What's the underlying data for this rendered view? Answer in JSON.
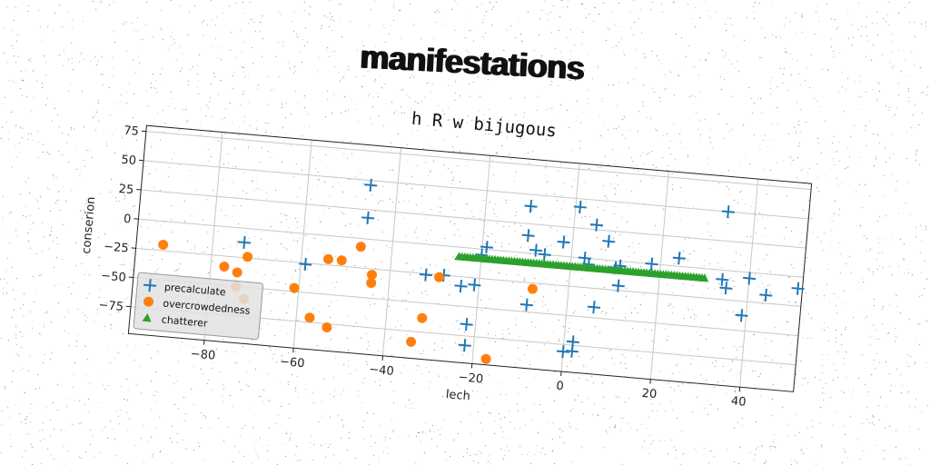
{
  "title": "manifestations",
  "chart_data": {
    "type": "scatter",
    "subtitle": "h R w bijugous",
    "xlabel": "lech",
    "ylabel": "conserion",
    "xlim": [
      -97,
      52
    ],
    "ylim": [
      -98,
      80
    ],
    "xticks": [
      -80,
      -60,
      -40,
      -20,
      0,
      20,
      40
    ],
    "yticks": [
      -75,
      -50,
      -25,
      0,
      25,
      50,
      75
    ],
    "grid": true,
    "legend_position": "lower left",
    "series": [
      {
        "name": "precalculate",
        "marker": "plus",
        "color": "#1f77b4",
        "points": [
          [
            -73,
            -12
          ],
          [
            -59,
            -26
          ],
          [
            -46,
            46
          ],
          [
            -46,
            18
          ],
          [
            -32,
            -26
          ],
          [
            -28,
            -25
          ],
          [
            -24,
            -33
          ],
          [
            -22,
            -65
          ],
          [
            -21,
            -31
          ],
          [
            -20,
            -5
          ],
          [
            -19,
            2
          ],
          [
            -22,
            -83
          ],
          [
            -10,
            40
          ],
          [
            -10,
            15
          ],
          [
            -9,
            -44
          ],
          [
            -8,
            3
          ],
          [
            -6,
            0
          ],
          [
            -2,
            12
          ],
          [
            1,
            43
          ],
          [
            2,
            -72
          ],
          [
            3,
            0
          ],
          [
            4,
            -5
          ],
          [
            5,
            29
          ],
          [
            6,
            -41
          ],
          [
            8,
            16
          ],
          [
            10,
            -6
          ],
          [
            11,
            -4
          ],
          [
            11,
            -21
          ],
          [
            18,
            0
          ],
          [
            24,
            7
          ],
          [
            34,
            50
          ],
          [
            35,
            -15
          ],
          [
            34,
            -8
          ],
          [
            39,
            -37
          ],
          [
            40,
            -5
          ],
          [
            44,
            -18
          ],
          [
            51,
            -10
          ],
          [
            2,
            -80
          ],
          [
            0,
            -81
          ]
        ]
      },
      {
        "name": "overcrowdedness",
        "marker": "circle",
        "color": "#ff7f0e",
        "points": [
          [
            -91,
            -20
          ],
          [
            -77,
            -34
          ],
          [
            -74,
            -38
          ],
          [
            -74,
            -50
          ],
          [
            -72,
            -24
          ],
          [
            -72,
            -60
          ],
          [
            -61,
            -47
          ],
          [
            -57,
            -71
          ],
          [
            -54,
            -20
          ],
          [
            -53,
            -78
          ],
          [
            -51,
            -20
          ],
          [
            -47,
            -7
          ],
          [
            -44,
            -37
          ],
          [
            -44,
            -30
          ],
          [
            -34,
            -84
          ],
          [
            -32,
            -63
          ],
          [
            -29,
            -27
          ],
          [
            -17,
            -93
          ],
          [
            -8,
            -30
          ]
        ]
      },
      {
        "name": "chatterer",
        "marker": "triangle",
        "color": "#2ca02c",
        "x_range": [
          -25,
          30
        ],
        "y_value": -8,
        "count": 90
      }
    ]
  }
}
